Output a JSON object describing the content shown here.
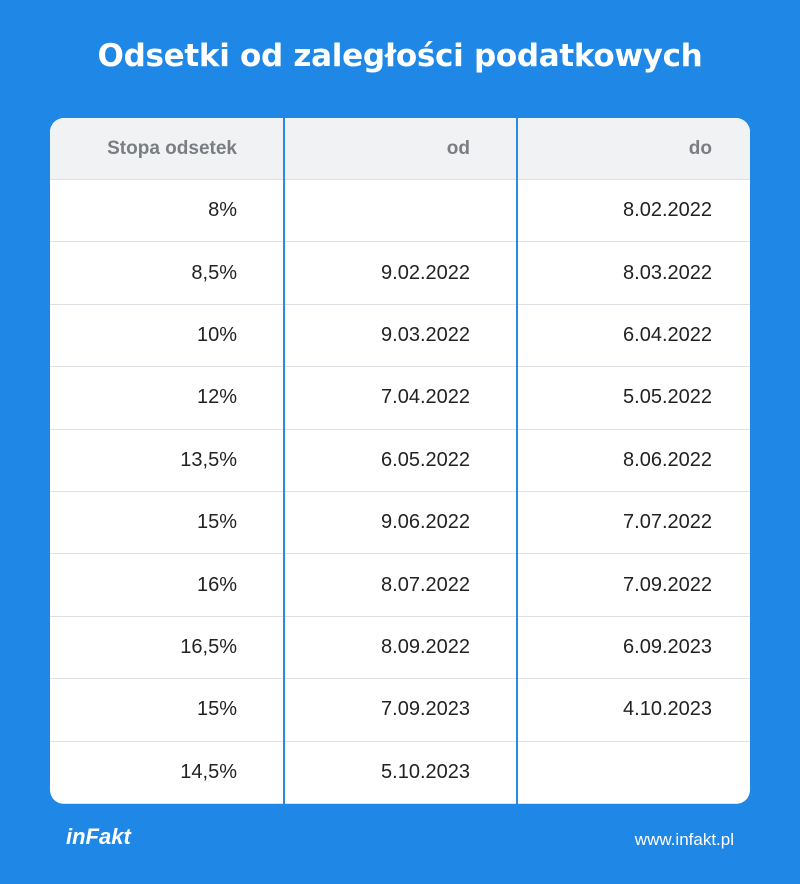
{
  "title": "Odsetki od zaległości podatkowych",
  "table": {
    "header": [
      "Stopa odsetek",
      "od",
      "do"
    ],
    "rows": [
      [
        "8%",
        null,
        "8.02.2022"
      ],
      [
        "8,5%",
        "9.02.2022",
        "8.03.2022"
      ],
      [
        "10%",
        "9.03.2022",
        "6.04.2022"
      ],
      [
        "12%",
        "7.04.2022",
        "5.05.2022"
      ],
      [
        "13,5%",
        "6.05.2022",
        "8.06.2022"
      ],
      [
        "15%",
        "9.06.2022",
        "7.07.2022"
      ],
      [
        "16%",
        "8.07.2022",
        "7.09.2022"
      ],
      [
        "16,5%",
        "8.09.2022",
        "6.09.2023"
      ],
      [
        "15%",
        "7.09.2023",
        "4.10.2023"
      ],
      [
        "14,5%",
        "5.10.2023",
        null
      ]
    ]
  },
  "footer": {
    "logo": "inFakt",
    "url": "www.infakt.pl"
  }
}
